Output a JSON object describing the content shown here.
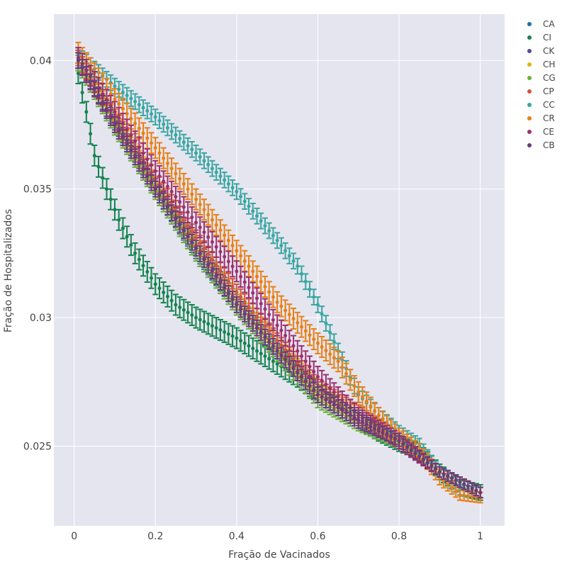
{
  "chart_data": {
    "type": "scatter",
    "xlabel": "Fração de Vacinados",
    "ylabel": "Fração de Hospitalizados",
    "xlim": [
      -0.05,
      1.06
    ],
    "ylim": [
      0.0219,
      0.0418
    ],
    "x_ticks": [
      0,
      0.2,
      0.4,
      0.6,
      0.8,
      1
    ],
    "x_tick_labels": [
      "0",
      "0.2",
      "0.4",
      "0.6",
      "0.8",
      "1"
    ],
    "y_ticks": [
      0.025,
      0.03,
      0.035,
      0.04
    ],
    "y_tick_labels": [
      "0.025",
      "0.03",
      "0.035",
      "0.04"
    ],
    "grid": true,
    "error_bars": true,
    "legend_position": "top-right",
    "background": "#e5e5f0",
    "series": [
      {
        "name": "CA",
        "color": "#1f6fa8",
        "x": [
          0.01,
          0.1,
          0.2,
          0.3,
          0.4,
          0.5,
          0.6,
          0.7,
          0.8,
          0.9,
          1.0
        ],
        "y": [
          0.04,
          0.0375,
          0.035,
          0.0326,
          0.0305,
          0.0287,
          0.027,
          0.026,
          0.0252,
          0.024,
          0.0232
        ],
        "err": [
          0.0003,
          0.0003,
          0.0003,
          0.0003,
          0.0003,
          0.0003,
          0.0003,
          0.0003,
          0.0002,
          0.0002,
          0.0002
        ]
      },
      {
        "name": "CI",
        "color": "#13834e",
        "x": [
          0.01,
          0.03,
          0.05,
          0.08,
          0.11,
          0.15,
          0.2,
          0.25,
          0.3,
          0.35,
          0.4,
          0.45,
          0.5,
          0.55,
          0.6,
          0.65,
          0.7,
          0.75,
          0.8,
          0.85,
          0.9,
          0.95,
          1.0
        ],
        "y": [
          0.0395,
          0.038,
          0.0363,
          0.035,
          0.0338,
          0.0325,
          0.0313,
          0.0305,
          0.03,
          0.0296,
          0.0292,
          0.0287,
          0.0282,
          0.0277,
          0.0271,
          0.0265,
          0.026,
          0.0255,
          0.0251,
          0.0248,
          0.024,
          0.0234,
          0.0232
        ],
        "err": [
          0.0004,
          0.0004,
          0.0004,
          0.0004,
          0.0004,
          0.0004,
          0.0004,
          0.0004,
          0.0004,
          0.0004,
          0.0004,
          0.0004,
          0.0004,
          0.0004,
          0.0004,
          0.0003,
          0.0003,
          0.0003,
          0.0003,
          0.0003,
          0.0003,
          0.0003,
          0.0003
        ]
      },
      {
        "name": "CK",
        "color": "#5c4a8c",
        "x": [
          0.01,
          0.1,
          0.2,
          0.3,
          0.4,
          0.5,
          0.6,
          0.7,
          0.8,
          0.9,
          1.0
        ],
        "y": [
          0.04,
          0.0376,
          0.0351,
          0.0328,
          0.0306,
          0.0288,
          0.0271,
          0.0261,
          0.0252,
          0.024,
          0.0232
        ],
        "err": [
          0.0003,
          0.0003,
          0.0003,
          0.0003,
          0.0003,
          0.0003,
          0.0003,
          0.0003,
          0.0002,
          0.0002,
          0.0002
        ]
      },
      {
        "name": "CH",
        "color": "#e0b410",
        "x": [
          0.01,
          0.1,
          0.2,
          0.3,
          0.4,
          0.5,
          0.6,
          0.7,
          0.8,
          0.9,
          1.0
        ],
        "y": [
          0.0401,
          0.0377,
          0.0352,
          0.0329,
          0.0308,
          0.029,
          0.0272,
          0.0262,
          0.0253,
          0.024,
          0.0232
        ],
        "err": [
          0.0003,
          0.0003,
          0.0003,
          0.0003,
          0.0003,
          0.0003,
          0.0003,
          0.0003,
          0.0002,
          0.0002,
          0.0002
        ]
      },
      {
        "name": "CG",
        "color": "#6cae3b",
        "x": [
          0.01,
          0.1,
          0.2,
          0.3,
          0.4,
          0.5,
          0.6,
          0.7,
          0.8,
          0.9,
          1.0
        ],
        "y": [
          0.0399,
          0.0374,
          0.0349,
          0.0325,
          0.0304,
          0.0286,
          0.0268,
          0.0259,
          0.0251,
          0.024,
          0.0232
        ],
        "err": [
          0.0003,
          0.0003,
          0.0003,
          0.0003,
          0.0003,
          0.0003,
          0.0003,
          0.0003,
          0.0002,
          0.0002,
          0.0002
        ]
      },
      {
        "name": "CP",
        "color": "#d4553d",
        "x": [
          0.01,
          0.1,
          0.2,
          0.3,
          0.4,
          0.5,
          0.6,
          0.7,
          0.8,
          0.9,
          1.0
        ],
        "y": [
          0.0401,
          0.0378,
          0.0354,
          0.0331,
          0.031,
          0.0291,
          0.0273,
          0.0263,
          0.0253,
          0.024,
          0.0232
        ],
        "err": [
          0.0003,
          0.0003,
          0.0003,
          0.0003,
          0.0003,
          0.0003,
          0.0003,
          0.0003,
          0.0002,
          0.0002,
          0.0002
        ]
      },
      {
        "name": "CC",
        "color": "#3aa6a0",
        "x": [
          0.01,
          0.1,
          0.2,
          0.3,
          0.4,
          0.5,
          0.55,
          0.6,
          0.65,
          0.7,
          0.75,
          0.8,
          0.85,
          0.9,
          0.95,
          1.0
        ],
        "y": [
          0.0402,
          0.039,
          0.0378,
          0.0364,
          0.0349,
          0.033,
          0.032,
          0.0305,
          0.0287,
          0.027,
          0.0262,
          0.0255,
          0.025,
          0.024,
          0.0233,
          0.0232
        ],
        "err": [
          0.0003,
          0.0003,
          0.0003,
          0.0003,
          0.0003,
          0.0003,
          0.0003,
          0.0003,
          0.0003,
          0.0003,
          0.0003,
          0.0003,
          0.0003,
          0.0002,
          0.0002,
          0.0002
        ]
      },
      {
        "name": "CR",
        "color": "#ea7f13",
        "x": [
          0.01,
          0.1,
          0.2,
          0.3,
          0.4,
          0.5,
          0.6,
          0.65,
          0.7,
          0.75,
          0.8,
          0.85,
          0.9,
          0.95,
          1.0
        ],
        "y": [
          0.0403,
          0.0385,
          0.0366,
          0.0346,
          0.0326,
          0.0306,
          0.029,
          0.0283,
          0.0271,
          0.0262,
          0.0254,
          0.0248,
          0.0238,
          0.0231,
          0.023
        ],
        "err": [
          0.0004,
          0.0004,
          0.0004,
          0.0004,
          0.0004,
          0.0004,
          0.0004,
          0.0004,
          0.0004,
          0.0003,
          0.0003,
          0.0003,
          0.0003,
          0.0002,
          0.0002
        ]
      },
      {
        "name": "CE",
        "color": "#9c2f6e",
        "x": [
          0.01,
          0.1,
          0.2,
          0.3,
          0.4,
          0.5,
          0.6,
          0.7,
          0.8,
          0.9,
          1.0
        ],
        "y": [
          0.0401,
          0.038,
          0.0357,
          0.0337,
          0.0318,
          0.0297,
          0.0277,
          0.0262,
          0.0252,
          0.024,
          0.0232
        ],
        "err": [
          0.0004,
          0.0004,
          0.0004,
          0.0004,
          0.0004,
          0.0004,
          0.0004,
          0.0003,
          0.0003,
          0.0002,
          0.0002
        ]
      },
      {
        "name": "CB",
        "color": "#6b3a78",
        "x": [
          0.01,
          0.1,
          0.2,
          0.3,
          0.4,
          0.5,
          0.6,
          0.7,
          0.8,
          0.9,
          1.0
        ],
        "y": [
          0.04,
          0.0375,
          0.035,
          0.0327,
          0.0305,
          0.0287,
          0.027,
          0.026,
          0.0252,
          0.024,
          0.0232
        ],
        "err": [
          0.0003,
          0.0003,
          0.0003,
          0.0003,
          0.0003,
          0.0003,
          0.0003,
          0.0003,
          0.0002,
          0.0002,
          0.0002
        ]
      }
    ]
  }
}
